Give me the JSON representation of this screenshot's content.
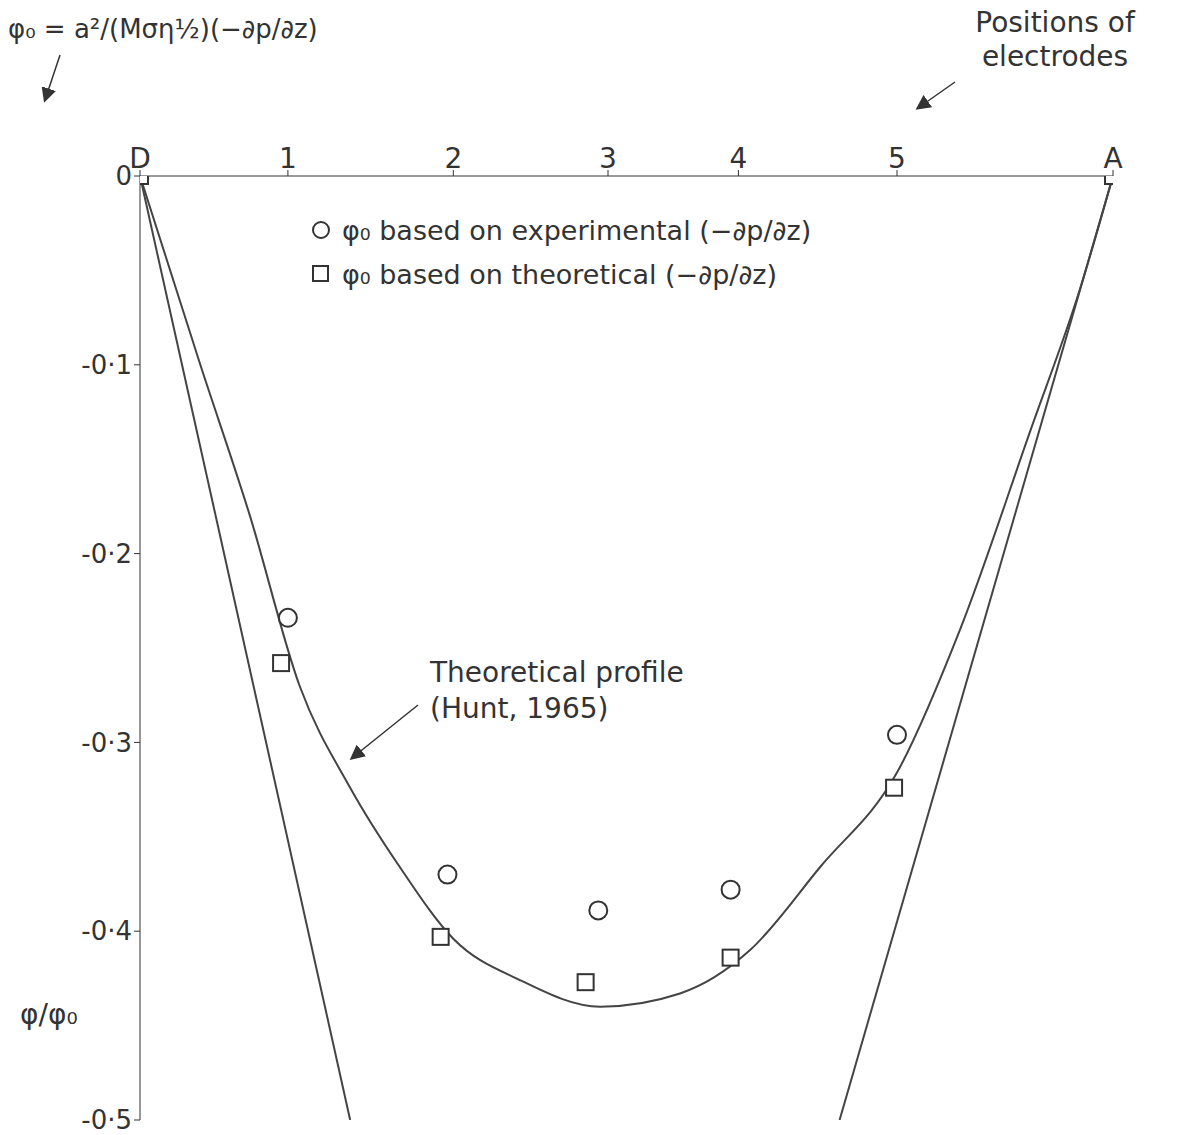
{
  "chart_data": {
    "type": "line",
    "annotations": [
      "φ₀ = a²/(Mση½)(−∂p/∂z)",
      "Theoretical profile (Hunt, 1965)"
    ],
    "xlabel": "Positions of electrodes",
    "ylabel": "φ/φ₀",
    "xlim": [
      0,
      1
    ],
    "xticks": [
      {
        "value": 0,
        "label": "D"
      },
      {
        "value": 0.152,
        "label": "1"
      },
      {
        "value": 0.322,
        "label": "2"
      },
      {
        "value": 0.481,
        "label": "3"
      },
      {
        "value": 0.615,
        "label": "4"
      },
      {
        "value": 0.778,
        "label": "5"
      },
      {
        "value": 1,
        "label": "A"
      }
    ],
    "ylim": [
      -0.5,
      0
    ],
    "yticks": [
      0,
      {
        "value": -0.1,
        "label": "-0·1"
      },
      {
        "value": -0.2,
        "label": "-0·2"
      },
      {
        "value": -0.3,
        "label": "-0·3"
      },
      {
        "value": -0.4,
        "label": "-0·4"
      },
      {
        "value": -0.5,
        "label": "-0·5"
      }
    ],
    "legend": "top",
    "series": [
      {
        "name": "φ₀ based on experimental (−∂p/∂z)",
        "type": "scatter",
        "marker": "circle",
        "color": "#333333",
        "x": [
          0.152,
          0.316,
          0.471,
          0.607,
          0.778
        ],
        "values": [
          -0.234,
          -0.37,
          -0.389,
          -0.378,
          -0.296
        ]
      },
      {
        "name": "φ₀ based on theoretical (−∂p/∂z)",
        "type": "scatter",
        "marker": "square",
        "color": "#333333",
        "x": [
          0,
          0.145,
          0.309,
          0.458,
          0.607,
          0.775,
          1
        ],
        "values": [
          0,
          -0.258,
          -0.403,
          -0.427,
          -0.414,
          -0.324,
          0
        ]
      },
      {
        "type": "line",
        "line_style": "solid",
        "color": "#444444",
        "x": [
          0,
          0.062,
          0.113,
          0.164,
          0.216,
          0.267,
          0.322,
          0.391,
          0.473,
          0.555,
          0.627,
          0.699,
          0.778,
          0.843,
          0.915,
          0.966,
          1
        ],
        "values": [
          0,
          -0.1,
          -0.18,
          -0.27,
          -0.324,
          -0.366,
          -0.404,
          -0.426,
          -0.44,
          -0.433,
          -0.41,
          -0.366,
          -0.316,
          -0.24,
          -0.135,
          -0.06,
          0
        ]
      },
      {
        "type": "line",
        "line_style": "solid",
        "color": "#444444",
        "x": [
          0,
          0.216
        ],
        "values": [
          0,
          -0.5
        ]
      },
      {
        "type": "line",
        "line_style": "solid",
        "color": "#444444",
        "x": [
          1,
          0.719
        ],
        "values": [
          0,
          -0.5
        ]
      }
    ]
  }
}
